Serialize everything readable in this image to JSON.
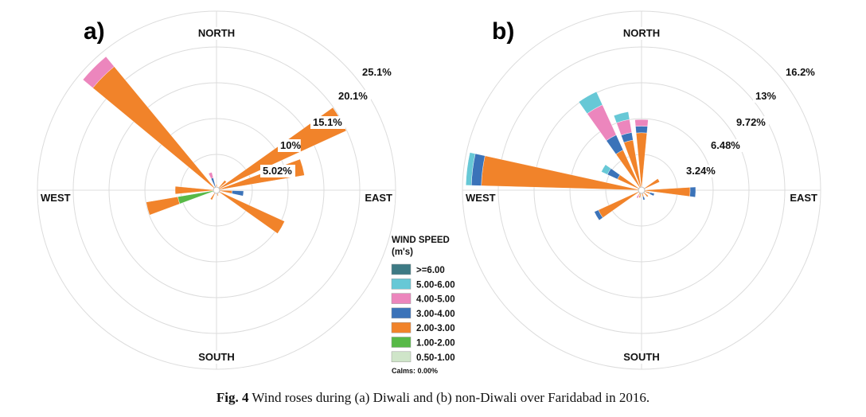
{
  "chart_data": [
    {
      "type": "wind-rose",
      "panel_label": "a)",
      "directions": [
        "NORTH",
        "EAST",
        "SOUTH",
        "WEST"
      ],
      "ring_labels": [
        "5.02%",
        "10%",
        "15.1%",
        "20.1%",
        "25.1%"
      ],
      "ring_values": [
        5.02,
        10,
        15.1,
        20.1,
        25.1
      ],
      "bins": [
        {
          "azimuth": 315,
          "segments": [
            {
              "speed": "2.00-3.00",
              "value": 22.5
            },
            {
              "speed": "4.00-5.00",
              "value": 1.8
            }
          ]
        },
        {
          "azimuth": 60,
          "segments": [
            {
              "speed": "2.00-3.00",
              "value": 20.0
            }
          ]
        },
        {
          "azimuth": 75,
          "segments": [
            {
              "speed": "2.00-3.00",
              "value": 12.5
            }
          ]
        },
        {
          "azimuth": 120,
          "segments": [
            {
              "speed": "2.00-3.00",
              "value": 10.5
            }
          ]
        },
        {
          "azimuth": 255,
          "segments": [
            {
              "speed": "1.00-2.00",
              "value": 5.5
            },
            {
              "speed": "2.00-3.00",
              "value": 4.5
            }
          ]
        },
        {
          "azimuth": 270,
          "segments": [
            {
              "speed": "2.00-3.00",
              "value": 5.8
            }
          ]
        },
        {
          "azimuth": 97,
          "segments": [
            {
              "speed": "2.00-3.00",
              "value": 2.2
            },
            {
              "speed": "3.00-4.00",
              "value": 1.6
            }
          ]
        },
        {
          "azimuth": 340,
          "segments": [
            {
              "speed": "3.00-4.00",
              "value": 1.8
            },
            {
              "speed": "4.00-5.00",
              "value": 0.8
            }
          ]
        },
        {
          "azimuth": 45,
          "segments": [
            {
              "speed": "2.00-3.00",
              "value": 1.8
            }
          ]
        },
        {
          "azimuth": 210,
          "segments": [
            {
              "speed": "2.00-3.00",
              "value": 1.5
            }
          ]
        },
        {
          "azimuth": 165,
          "segments": [
            {
              "speed": "2.00-3.00",
              "value": 0.8
            }
          ]
        },
        {
          "azimuth": 0,
          "segments": [
            {
              "speed": "2.00-3.00",
              "value": 0.8
            }
          ]
        }
      ]
    },
    {
      "type": "wind-rose",
      "panel_label": "b)",
      "directions": [
        "NORTH",
        "EAST",
        "SOUTH",
        "WEST"
      ],
      "ring_labels": [
        "3.24%",
        "6.48%",
        "9.72%",
        "13%",
        "16.2%"
      ],
      "ring_values": [
        3.24,
        6.48,
        9.72,
        13.0,
        16.2
      ],
      "bins": [
        {
          "azimuth": 277,
          "segments": [
            {
              "speed": "2.00-3.00",
              "value": 14.5
            },
            {
              "speed": "3.00-4.00",
              "value": 0.9
            },
            {
              "speed": "5.00-6.00",
              "value": 0.5
            }
          ]
        },
        {
          "azimuth": 330,
          "segments": [
            {
              "speed": "2.00-3.00",
              "value": 4.0
            },
            {
              "speed": "3.00-4.00",
              "value": 1.5
            },
            {
              "speed": "4.00-5.00",
              "value": 3.0
            },
            {
              "speed": "5.00-6.00",
              "value": 1.3
            }
          ]
        },
        {
          "azimuth": 345,
          "segments": [
            {
              "speed": "2.00-3.00",
              "value": 4.6
            },
            {
              "speed": "3.00-4.00",
              "value": 0.7
            },
            {
              "speed": "4.00-5.00",
              "value": 1.2
            },
            {
              "speed": "5.00-6.00",
              "value": 0.7
            }
          ]
        },
        {
          "azimuth": 0,
          "segments": [
            {
              "speed": "2.00-3.00",
              "value": 5.2
            },
            {
              "speed": "3.00-4.00",
              "value": 0.6
            },
            {
              "speed": "4.00-5.00",
              "value": 0.6
            }
          ]
        },
        {
          "azimuth": 300,
          "segments": [
            {
              "speed": "2.00-3.00",
              "value": 2.4
            },
            {
              "speed": "3.00-4.00",
              "value": 1.0
            },
            {
              "speed": "5.00-6.00",
              "value": 0.6
            }
          ]
        },
        {
          "azimuth": 92,
          "segments": [
            {
              "speed": "2.00-3.00",
              "value": 4.4
            },
            {
              "speed": "3.00-4.00",
              "value": 0.5
            }
          ]
        },
        {
          "azimuth": 240,
          "segments": [
            {
              "speed": "2.00-3.00",
              "value": 4.3
            },
            {
              "speed": "3.00-4.00",
              "value": 0.4
            }
          ]
        },
        {
          "azimuth": 60,
          "segments": [
            {
              "speed": "2.00-3.00",
              "value": 1.8
            }
          ]
        },
        {
          "azimuth": 110,
          "segments": [
            {
              "speed": "2.00-3.00",
              "value": 0.8
            },
            {
              "speed": "3.00-4.00",
              "value": 0.4
            }
          ]
        },
        {
          "azimuth": 135,
          "segments": [
            {
              "speed": "2.00-3.00",
              "value": 0.8
            }
          ]
        },
        {
          "azimuth": 165,
          "segments": [
            {
              "speed": "2.00-3.00",
              "value": 0.6
            },
            {
              "speed": "3.00-4.00",
              "value": 0.3
            }
          ]
        },
        {
          "azimuth": 195,
          "segments": [
            {
              "speed": "2.00-3.00",
              "value": 0.7
            }
          ]
        },
        {
          "azimuth": 210,
          "segments": [
            {
              "speed": "2.00-3.00",
              "value": 0.5
            },
            {
              "speed": "4.00-5.00",
              "value": 0.3
            }
          ]
        }
      ]
    }
  ],
  "legend": {
    "title_line1": "WIND SPEED",
    "title_line2": "(m's)",
    "items": [
      {
        "label": ">=6.00",
        "color": "#3d7a84"
      },
      {
        "label": "5.00-6.00",
        "color": "#67c8d6"
      },
      {
        "label": "4.00-5.00",
        "color": "#ec86bd"
      },
      {
        "label": "3.00-4.00",
        "color": "#3b73b9"
      },
      {
        "label": "2.00-3.00",
        "color": "#f1832a"
      },
      {
        "label": "1.00-2.00",
        "color": "#57b947"
      },
      {
        "label": "0.50-1.00",
        "color": "#cfe5c9"
      }
    ],
    "calms": "Calms: 0.00%"
  },
  "caption": {
    "prefix": "Fig. 4",
    "text": " Wind roses during (a) Diwali and (b) non-Diwali over Faridabad in 2016."
  }
}
